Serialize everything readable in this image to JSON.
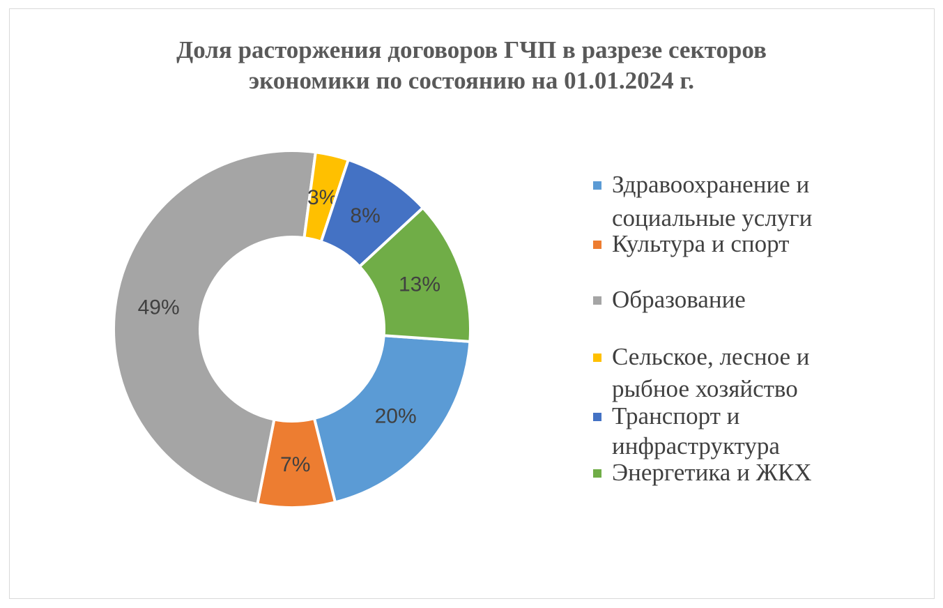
{
  "chart_data": {
    "type": "pie",
    "variant": "donut",
    "title": "Доля расторжения договоров ГЧП в разрезе секторов экономики по состоянию на 01.01.2024 г.",
    "title_lines": [
      "Доля расторжения договоров ГЧП в разрезе секторов",
      "экономики по состоянию на 01.01.2024 г."
    ],
    "legend_position": "right",
    "start_angle_deg": 94,
    "series": [
      {
        "name": "Здравоохранение и социальные услуги",
        "legend_lines": [
          "Здравоохранение и",
          "социальные услуги"
        ],
        "value": 20,
        "label": "20%",
        "color": "#5B9BD5"
      },
      {
        "name": "Культура и спорт",
        "legend_lines": [
          "Культура и спорт"
        ],
        "value": 7,
        "label": "7%",
        "color": "#ED7D31"
      },
      {
        "name": "Образование",
        "legend_lines": [
          "Образование"
        ],
        "value": 49,
        "label": "49%",
        "color": "#A5A5A5"
      },
      {
        "name": "Сельское, лесное и рыбное хозяйство",
        "legend_lines": [
          "Сельское, лесное и",
          "рыбное хозяйство"
        ],
        "value": 3,
        "label": "3%",
        "color": "#FFC000"
      },
      {
        "name": "Транспорт и инфраструктура",
        "legend_lines": [
          "Транспорт и",
          "инфраструктура"
        ],
        "value": 8,
        "label": "8%",
        "color": "#4472C4"
      },
      {
        "name": "Энергетика и ЖКХ",
        "legend_lines": [
          "Энергетика и ЖКХ"
        ],
        "value": 13,
        "label": "13%",
        "color": "#70AD47"
      }
    ]
  }
}
